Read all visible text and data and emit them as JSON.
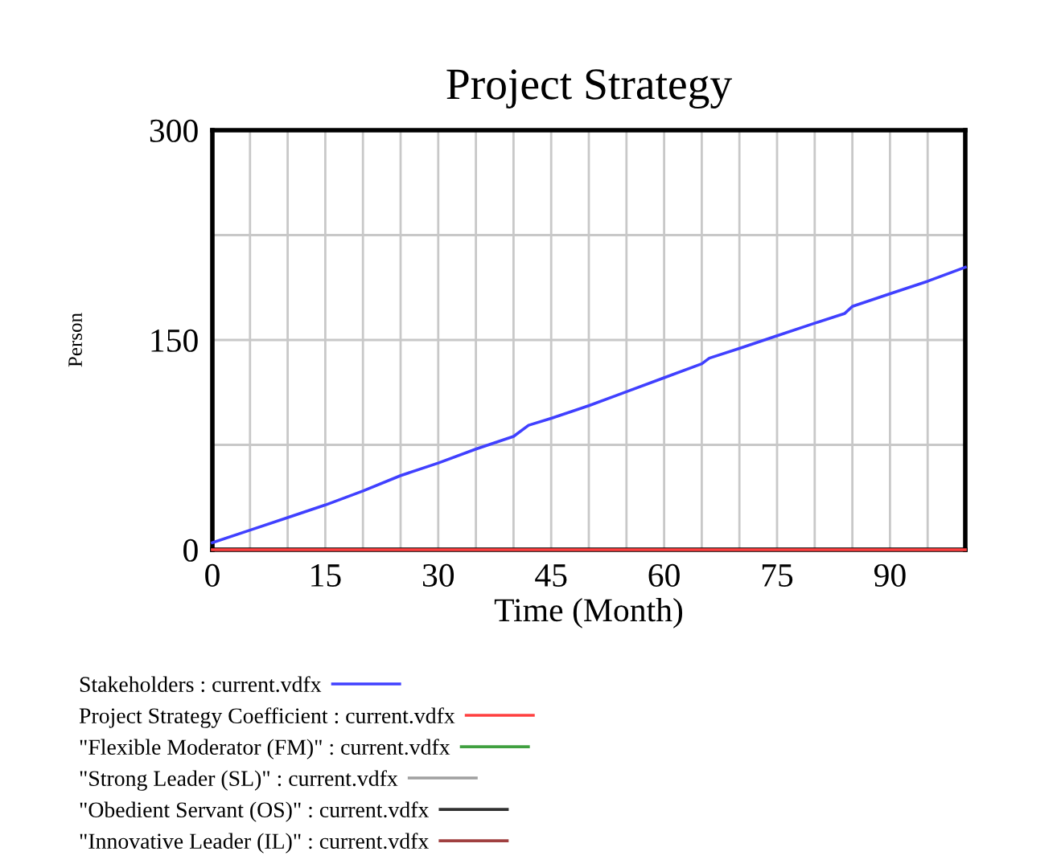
{
  "chart_data": {
    "type": "line",
    "title": "Project Strategy",
    "xlabel": "Time (Month)",
    "ylabel": "Person",
    "x": [
      0,
      5,
      10,
      15,
      20,
      25,
      30,
      35,
      40,
      42,
      45,
      50,
      55,
      60,
      65,
      66,
      70,
      75,
      80,
      84,
      85,
      90,
      95,
      100
    ],
    "series": [
      {
        "name": "Stakeholders : current.vdfx",
        "color": "#4040ff",
        "values": [
          5,
          14,
          23,
          32,
          42,
          53,
          62,
          72,
          81,
          89,
          94,
          103,
          113,
          123,
          133,
          137,
          144,
          153,
          162,
          169,
          174,
          183,
          192,
          202
        ]
      },
      {
        "name": "Project Strategy Coefficient : current.vdfx",
        "color": "#ff4040",
        "values": [
          0,
          0,
          0,
          0,
          0,
          0,
          0,
          0,
          0,
          0,
          0,
          0,
          0,
          0,
          0,
          0,
          0,
          0,
          0,
          0,
          0,
          0,
          0,
          0
        ]
      },
      {
        "name": "\"Flexible Moderator (FM)\" : current.vdfx",
        "color": "#40a040",
        "values": [
          null,
          null,
          null,
          null,
          null,
          null,
          null,
          null,
          null,
          null,
          null,
          null,
          null,
          null,
          null,
          null,
          null,
          null,
          null,
          null,
          null,
          null,
          null,
          null
        ]
      },
      {
        "name": "\"Strong Leader (SL)\" : current.vdfx",
        "color": "#a0a0a0",
        "values": [
          null,
          null,
          null,
          null,
          null,
          null,
          null,
          null,
          null,
          null,
          null,
          null,
          null,
          null,
          null,
          null,
          null,
          null,
          null,
          null,
          null,
          null,
          null,
          null
        ]
      },
      {
        "name": "\"Obedient Servant (OS)\" : current.vdfx",
        "color": "#303030",
        "values": [
          null,
          null,
          null,
          null,
          null,
          null,
          null,
          null,
          null,
          null,
          null,
          null,
          null,
          null,
          null,
          null,
          null,
          null,
          null,
          null,
          null,
          null,
          null,
          null
        ]
      },
      {
        "name": "\"Innovative Leader (IL)\" : current.vdfx",
        "color": "#a04040",
        "values": [
          null,
          null,
          null,
          null,
          null,
          null,
          null,
          null,
          null,
          null,
          null,
          null,
          null,
          null,
          null,
          null,
          null,
          null,
          null,
          null,
          null,
          null,
          null,
          null
        ]
      }
    ],
    "xlim": [
      0,
      100
    ],
    "xticks": [
      0,
      {
        "value": 5,
        "label": null
      },
      {
        "value": 10,
        "label": null
      },
      15,
      {
        "value": 20,
        "label": null
      },
      {
        "value": 25,
        "label": null
      },
      30,
      {
        "value": 35,
        "label": null
      },
      {
        "value": 40,
        "label": null
      },
      45,
      {
        "value": 50,
        "label": null
      },
      {
        "value": 55,
        "label": null
      },
      60,
      {
        "value": 65,
        "label": null
      },
      {
        "value": 70,
        "label": null
      },
      75,
      {
        "value": 80,
        "label": null
      },
      {
        "value": 85,
        "label": null
      },
      90,
      {
        "value": 95,
        "label": null
      }
    ],
    "ylim": [
      0,
      300
    ],
    "yticks": [
      0,
      {
        "value": 75,
        "label": null
      },
      150,
      {
        "value": 225,
        "label": null
      },
      300
    ],
    "grid": true,
    "legend": "bottom",
    "marker": "none",
    "line_style": "solid"
  }
}
